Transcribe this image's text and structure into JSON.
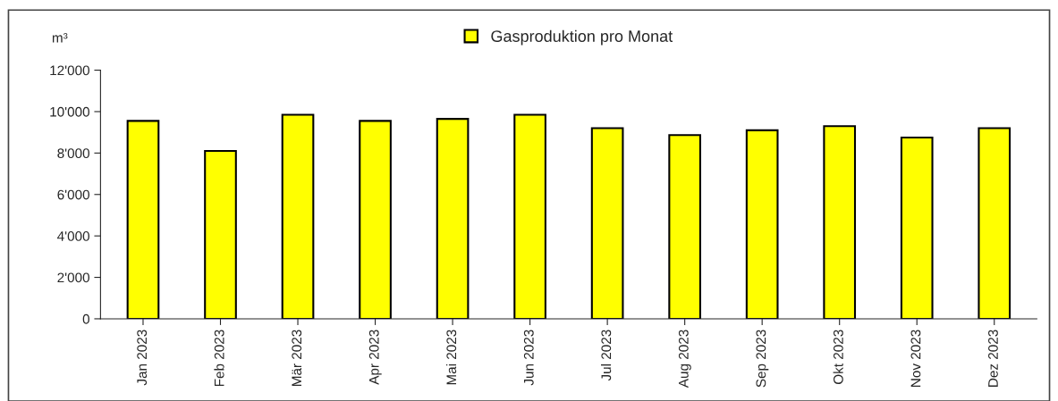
{
  "chart_data": {
    "type": "bar",
    "ylabel": "m³",
    "categories": [
      "Jan 2023",
      "Feb 2023",
      "Mär 2023",
      "Apr 2023",
      "Mai 2023",
      "Jun 2023",
      "Jul 2023",
      "Aug 2023",
      "Sep 2023",
      "Okt 2023",
      "Nov 2023",
      "Dez 2023"
    ],
    "series": [
      {
        "name": "Gasproduktion pro Monat",
        "color": "#ffff00",
        "values": [
          9550,
          8100,
          9850,
          9550,
          9650,
          9850,
          9200,
          8870,
          9100,
          9300,
          8750,
          9200
        ]
      }
    ],
    "ylim": [
      0,
      12000
    ],
    "yticks": [
      0,
      {
        "value": 2000,
        "label": "2'000"
      },
      {
        "value": 4000,
        "label": "4'000"
      },
      {
        "value": 6000,
        "label": "6'000"
      },
      {
        "value": 8000,
        "label": "8'000"
      },
      {
        "value": 10000,
        "label": "10'000"
      },
      {
        "value": 12000,
        "label": "12'000"
      }
    ],
    "grid": false,
    "legend": "top"
  }
}
